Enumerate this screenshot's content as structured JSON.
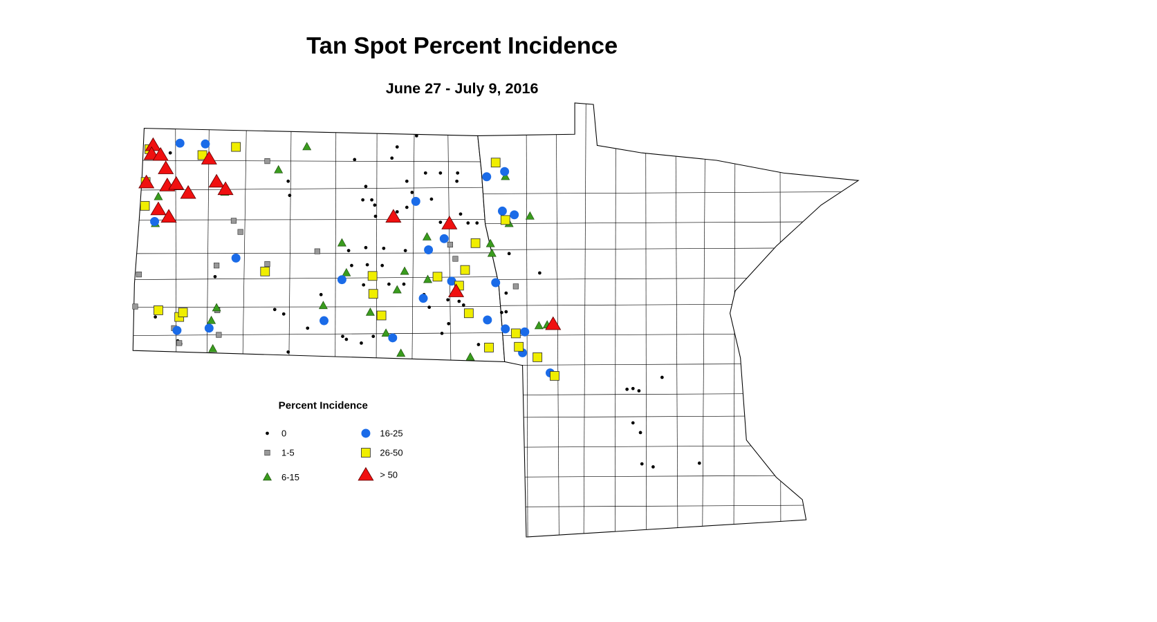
{
  "title": "Tan Spot Percent Incidence",
  "subtitle": "June 27 - July 9, 2016",
  "legend": {
    "title": "Percent Incidence",
    "items": [
      {
        "label": "0"
      },
      {
        "label": "1-5"
      },
      {
        "label": "6-15"
      },
      {
        "label": "16-25"
      },
      {
        "label": "26-50"
      },
      {
        "label": "> 50"
      }
    ]
  }
}
